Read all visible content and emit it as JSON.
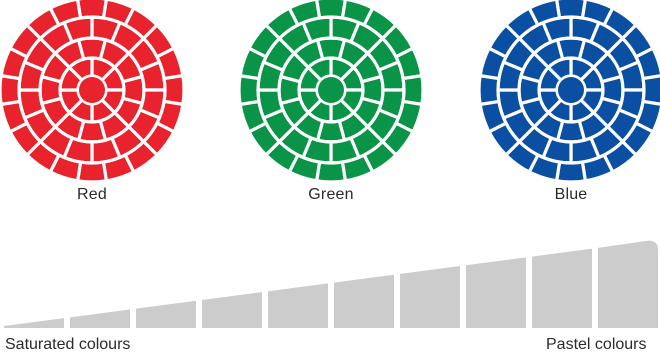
{
  "wheels": [
    {
      "label": "Red",
      "color": "#e8232d"
    },
    {
      "label": "Green",
      "color": "#0a9447"
    },
    {
      "label": "Blue",
      "color": "#0b4fa3"
    }
  ],
  "scale": {
    "left_label": "Saturated colours",
    "right_label": "Pastel colours",
    "bar_color": "#cccccc",
    "segment_count": 10
  }
}
